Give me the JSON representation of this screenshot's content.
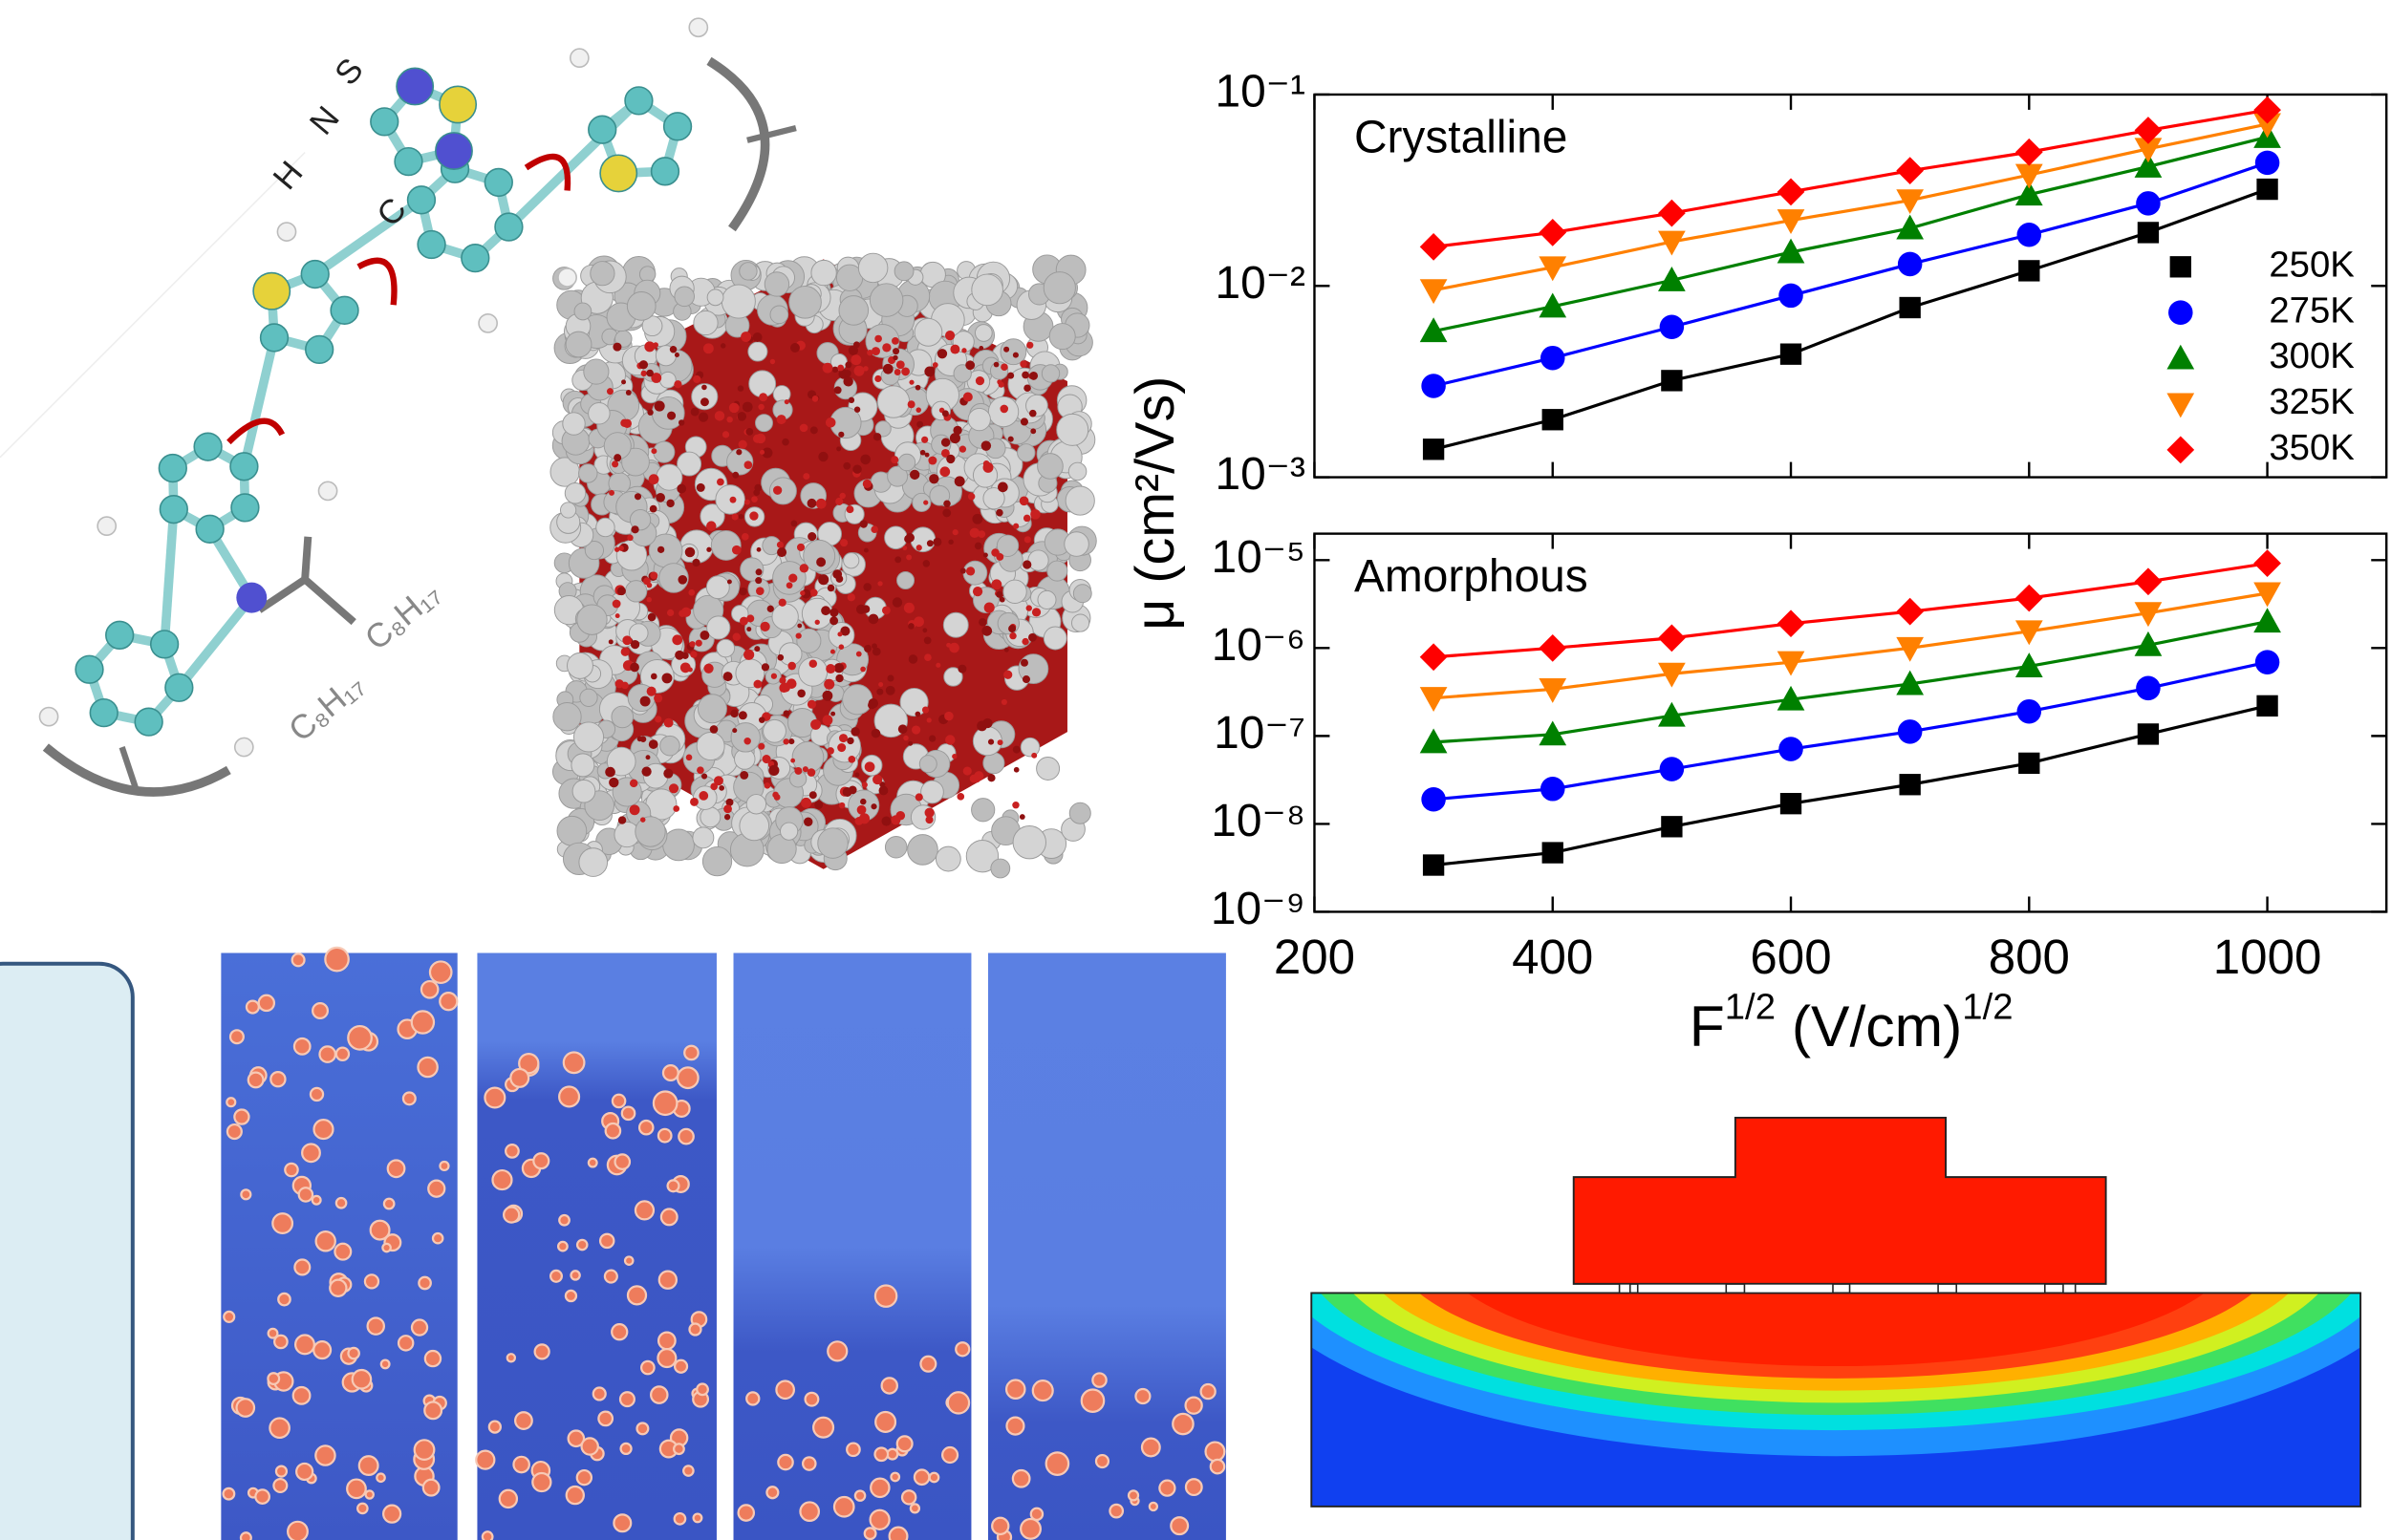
{
  "chart_data": [
    {
      "type": "line",
      "title": "Crystalline",
      "log_y": true,
      "ylabel": "μ (cm²/Vs)",
      "x": [
        300,
        400,
        500,
        600,
        700,
        800,
        900,
        1000
      ],
      "xlim": [
        200,
        1100
      ],
      "ylim": [
        0.001,
        0.1
      ],
      "yticks": [
        {
          "value": 0.1,
          "label": "10⁻¹"
        },
        {
          "value": 0.01,
          "label": "10⁻²"
        },
        {
          "value": 0.001,
          "label": "10⁻³"
        }
      ],
      "legend": "lower right",
      "series": [
        {
          "name": "250K",
          "color": "#000000",
          "marker": "square",
          "values": [
            0.0014,
            0.002,
            0.0032,
            0.0044,
            0.0077,
            0.012,
            0.019,
            0.032
          ]
        },
        {
          "name": "275K",
          "color": "#0000ff",
          "marker": "circle",
          "values": [
            0.003,
            0.0042,
            0.0061,
            0.0089,
            0.013,
            0.0185,
            0.027,
            0.044
          ]
        },
        {
          "name": "300K",
          "color": "#008000",
          "marker": "triangle-up",
          "values": [
            0.0058,
            0.0078,
            0.0107,
            0.015,
            0.02,
            0.03,
            0.042,
            0.06
          ]
        },
        {
          "name": "325K",
          "color": "#ff8000",
          "marker": "triangle-down",
          "values": [
            0.0095,
            0.0125,
            0.017,
            0.022,
            0.028,
            0.038,
            0.052,
            0.07
          ]
        },
        {
          "name": "350K",
          "color": "#ff0000",
          "marker": "diamond",
          "values": [
            0.016,
            0.019,
            0.024,
            0.031,
            0.04,
            0.05,
            0.065,
            0.083
          ]
        }
      ]
    },
    {
      "type": "line",
      "title": "Amorphous",
      "log_y": true,
      "xlabel": {
        "base": "F",
        "base_sup": "1/2",
        "unit": " (V/cm)",
        "unit_sup": "1/2"
      },
      "x": [
        300,
        400,
        500,
        600,
        700,
        800,
        900,
        1000
      ],
      "xlim": [
        200,
        1100
      ],
      "xticks": [
        200,
        400,
        600,
        800,
        1000
      ],
      "ylim": [
        1e-09,
        2e-05
      ],
      "yticks": [
        {
          "value": 1e-05,
          "label": "10⁻⁵"
        },
        {
          "value": 1e-06,
          "label": "10⁻⁶"
        },
        {
          "value": 1e-07,
          "label": "10⁻⁷"
        },
        {
          "value": 1e-08,
          "label": "10⁻⁸"
        },
        {
          "value": 1e-09,
          "label": "10⁻⁹"
        }
      ],
      "series": [
        {
          "name": "250K",
          "color": "#000000",
          "marker": "square",
          "values": [
            3.4e-09,
            4.7e-09,
            9.3e-09,
            1.7e-08,
            2.8e-08,
            4.9e-08,
            1.05e-07,
            2.2e-07
          ]
        },
        {
          "name": "275K",
          "color": "#0000ff",
          "marker": "circle",
          "values": [
            1.9e-08,
            2.5e-08,
            4.2e-08,
            7.1e-08,
            1.12e-07,
            1.9e-07,
            3.5e-07,
            6.9e-07
          ]
        },
        {
          "name": "300K",
          "color": "#008000",
          "marker": "triangle-up",
          "values": [
            8.5e-08,
            1.04e-07,
            1.7e-07,
            2.6e-07,
            3.9e-07,
            6.2e-07,
            1.08e-06,
            2e-06
          ]
        },
        {
          "name": "325K",
          "color": "#ff8000",
          "marker": "triangle-down",
          "values": [
            2.7e-07,
            3.4e-07,
            5.1e-07,
            6.9e-07,
            1e-06,
            1.55e-06,
            2.5e-06,
            4.2e-06
          ]
        },
        {
          "name": "350K",
          "color": "#ff0000",
          "marker": "diamond",
          "values": [
            7.9e-07,
            1e-06,
            1.3e-06,
            1.9e-06,
            2.6e-06,
            3.7e-06,
            5.7e-06,
            9.2e-06
          ]
        }
      ]
    }
  ],
  "molecule": {
    "atoms": [
      "S",
      "N",
      "H",
      "C"
    ],
    "substituents": [
      "C₈H₁₇",
      "C₈H₁₇"
    ]
  }
}
